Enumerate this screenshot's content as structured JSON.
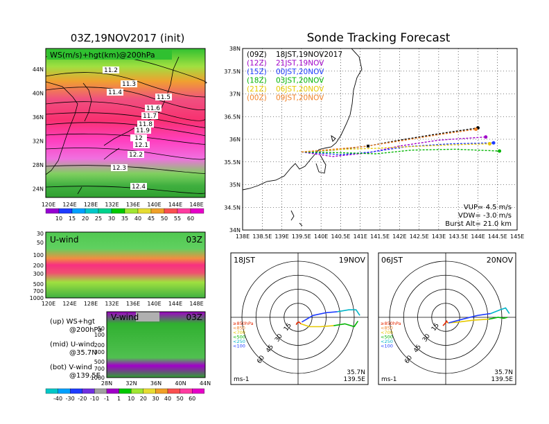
{
  "left": {
    "title": "03Z,19NOV2017 (init)",
    "map_label": "WS(m/s)+hgt(km)@200hPa",
    "lat_ticks": [
      "44N",
      "40N",
      "36N",
      "32N",
      "28N",
      "24N"
    ],
    "lon_ticks": [
      "120E",
      "124E",
      "128E",
      "132E",
      "136E",
      "140E",
      "144E",
      "148E"
    ],
    "hgt_labels": [
      "11.2",
      "11.3",
      "11.4",
      "11.5",
      "11.6",
      "11.7",
      "11.8",
      "11.9",
      "12",
      "12.1",
      "12.2",
      "12.3",
      "12.4"
    ],
    "ws_colorbar": [
      "10",
      "15",
      "20",
      "25",
      "30",
      "35",
      "40",
      "45",
      "50",
      "55",
      "60"
    ],
    "uwind_label": "U-wind",
    "uwind_time": "03Z",
    "p_ticks": [
      "30",
      "50",
      "100",
      "200",
      "300",
      "500",
      "700",
      "1000"
    ],
    "vwind_label": "V-wind",
    "vwind_time": "03Z",
    "v_lat_ticks": [
      "28N",
      "32N",
      "36N",
      "40N",
      "44N"
    ],
    "v_p_ticks": [
      "50",
      "100",
      "200",
      "300",
      "500",
      "700",
      "1000"
    ],
    "notes": [
      {
        "a": "(up) WS+hgt",
        "b": "@200hPa"
      },
      {
        "a": "(mid) U-wind",
        "b": "@35.7N"
      },
      {
        "a": "(bot) V-wind",
        "b": "@139.5E"
      }
    ],
    "wind_colorbar": [
      "-40",
      "-30",
      "-20",
      "-10",
      "-1",
      "1",
      "10",
      "20",
      "30",
      "40",
      "50",
      "60"
    ]
  },
  "right": {
    "title": "Sonde Tracking Forecast",
    "legend": [
      {
        "code": "(09Z)",
        "time": "18JST,19NOV2017",
        "color": "#000000"
      },
      {
        "code": "(12Z)",
        "time": "21JST,19NOV",
        "color": "#a000c8"
      },
      {
        "code": "(15Z)",
        "time": "00JST,20NOV",
        "color": "#1e3cff"
      },
      {
        "code": "(18Z)",
        "time": "03JST,20NOV",
        "color": "#00b400"
      },
      {
        "code": "(21Z)",
        "time": "06JST,20NOV",
        "color": "#e6c800"
      },
      {
        "code": "(00Z)",
        "time": "09JST,20NOV",
        "color": "#f08228"
      }
    ],
    "lat_ticks": [
      "38N",
      "37.5N",
      "37N",
      "36.5N",
      "36N",
      "35.5N",
      "35N",
      "34.5N",
      "34N"
    ],
    "lon_ticks": [
      "138E",
      "138.5E",
      "139E",
      "139.5E",
      "140E",
      "140.5E",
      "141E",
      "141.5E",
      "142E",
      "142.5E",
      "143E",
      "143.5E",
      "144E",
      "144.5E",
      "145E"
    ],
    "vup": "VUP= 4.5 m/s",
    "vdw": "VDW= -3.0 m/s",
    "burst": "Burst Alt= 21.0 km"
  },
  "hodographs": [
    {
      "time": "18JST",
      "date": "19NOV",
      "unit": "ms-1",
      "lat": "35.7N",
      "lon": "139.5E"
    },
    {
      "time": "06JST",
      "date": "20NOV",
      "unit": "ms-1",
      "lat": "35.7N",
      "lon": "139.5E"
    }
  ],
  "hodo_rings": [
    "15",
    "30",
    "45",
    "60"
  ],
  "hodo_legend": [
    {
      "label": "≥850hPa",
      "color": "#e62800"
    },
    {
      "label": "<850",
      "color": "#f08228"
    },
    {
      "label": "<700",
      "color": "#e6c800"
    },
    {
      "label": "<500",
      "color": "#00b400"
    },
    {
      "label": "<250",
      "color": "#00b4c8"
    },
    {
      "label": "<100",
      "color": "#1e3cff"
    }
  ],
  "chart_data": [
    {
      "type": "line",
      "chart": "sonde-tracks",
      "xlim": [
        138,
        145
      ],
      "ylim": [
        34,
        38
      ],
      "series": [
        {
          "name": "(09Z) 18JST,19NOV2017",
          "color": "#000000",
          "x": [
            139.5,
            140.3,
            141.2,
            142.0,
            143.0,
            144.0
          ],
          "y": [
            35.72,
            35.76,
            35.85,
            35.98,
            36.12,
            36.25
          ]
        },
        {
          "name": "(12Z) 21JST,19NOV",
          "color": "#a000c8",
          "x": [
            139.5,
            140.3,
            141.2,
            142.0,
            143.0,
            144.2
          ],
          "y": [
            35.72,
            35.62,
            35.7,
            35.85,
            35.98,
            36.05
          ]
        },
        {
          "name": "(15Z) 00JST,20NOV",
          "color": "#1e3cff",
          "x": [
            139.5,
            140.5,
            141.3,
            142.2,
            143.3,
            144.4
          ],
          "y": [
            35.72,
            35.66,
            35.72,
            35.84,
            35.9,
            35.92
          ]
        },
        {
          "name": "(18Z) 03JST,20NOV",
          "color": "#00b400",
          "x": [
            139.5,
            140.6,
            141.4,
            142.3,
            143.4,
            144.55
          ],
          "y": [
            35.72,
            35.7,
            35.68,
            35.76,
            35.78,
            35.74
          ]
        },
        {
          "name": "(21Z) 06JST,20NOV",
          "color": "#e6c800",
          "x": [
            139.5,
            140.6,
            141.4,
            142.3,
            143.4,
            144.3
          ],
          "y": [
            35.72,
            35.78,
            35.8,
            35.84,
            35.88,
            35.9
          ]
        },
        {
          "name": "(00Z) 09JST,20NOV",
          "color": "#f08228",
          "x": [
            139.5,
            140.3,
            141.1,
            142.0,
            143.0,
            143.95
          ],
          "y": [
            35.72,
            35.78,
            35.84,
            35.96,
            36.1,
            36.22
          ]
        }
      ]
    },
    {
      "type": "line",
      "chart": "hodograph-18JST",
      "units": "m/s",
      "segments": [
        {
          "label": "≥850hPa",
          "color": "#e62800",
          "u": [
            -2,
            -1,
            1,
            3
          ],
          "v": [
            -8,
            -6,
            -5,
            -7
          ]
        },
        {
          "label": "<700",
          "color": "#e6c800",
          "u": [
            3,
            12,
            24,
            38
          ],
          "v": [
            -7,
            -10,
            -10,
            -9
          ]
        },
        {
          "label": "<500",
          "color": "#00b400",
          "u": [
            38,
            50,
            60,
            64
          ],
          "v": [
            -9,
            -7,
            -10,
            -4
          ]
        },
        {
          "label": "<100",
          "color": "#1e3cff",
          "u": [
            4,
            16,
            30,
            42
          ],
          "v": [
            -5,
            2,
            5,
            6
          ]
        },
        {
          "label": "<250",
          "color": "#00b4c8",
          "u": [
            42,
            54,
            62,
            66
          ],
          "v": [
            6,
            8,
            8,
            2
          ]
        }
      ]
    },
    {
      "type": "line",
      "chart": "hodograph-06JST",
      "units": "m/s",
      "segments": [
        {
          "label": "≥850hPa",
          "color": "#e62800",
          "u": [
            -3,
            -1,
            1,
            2
          ],
          "v": [
            -9,
            -7,
            -4,
            -6
          ]
        },
        {
          "label": "<700",
          "color": "#e6c800",
          "u": [
            2,
            14,
            30,
            46
          ],
          "v": [
            -6,
            -5,
            -3,
            -2
          ]
        },
        {
          "label": "<500",
          "color": "#00b400",
          "u": [
            46,
            56,
            62,
            66
          ],
          "v": [
            -2,
            0,
            -1,
            0
          ]
        },
        {
          "label": "<100",
          "color": "#1e3cff",
          "u": [
            3,
            18,
            34,
            48
          ],
          "v": [
            -6,
            -2,
            2,
            4
          ]
        },
        {
          "label": "<250",
          "color": "#00b4c8",
          "u": [
            48,
            58,
            64,
            68
          ],
          "v": [
            4,
            8,
            10,
            4
          ]
        }
      ]
    }
  ]
}
